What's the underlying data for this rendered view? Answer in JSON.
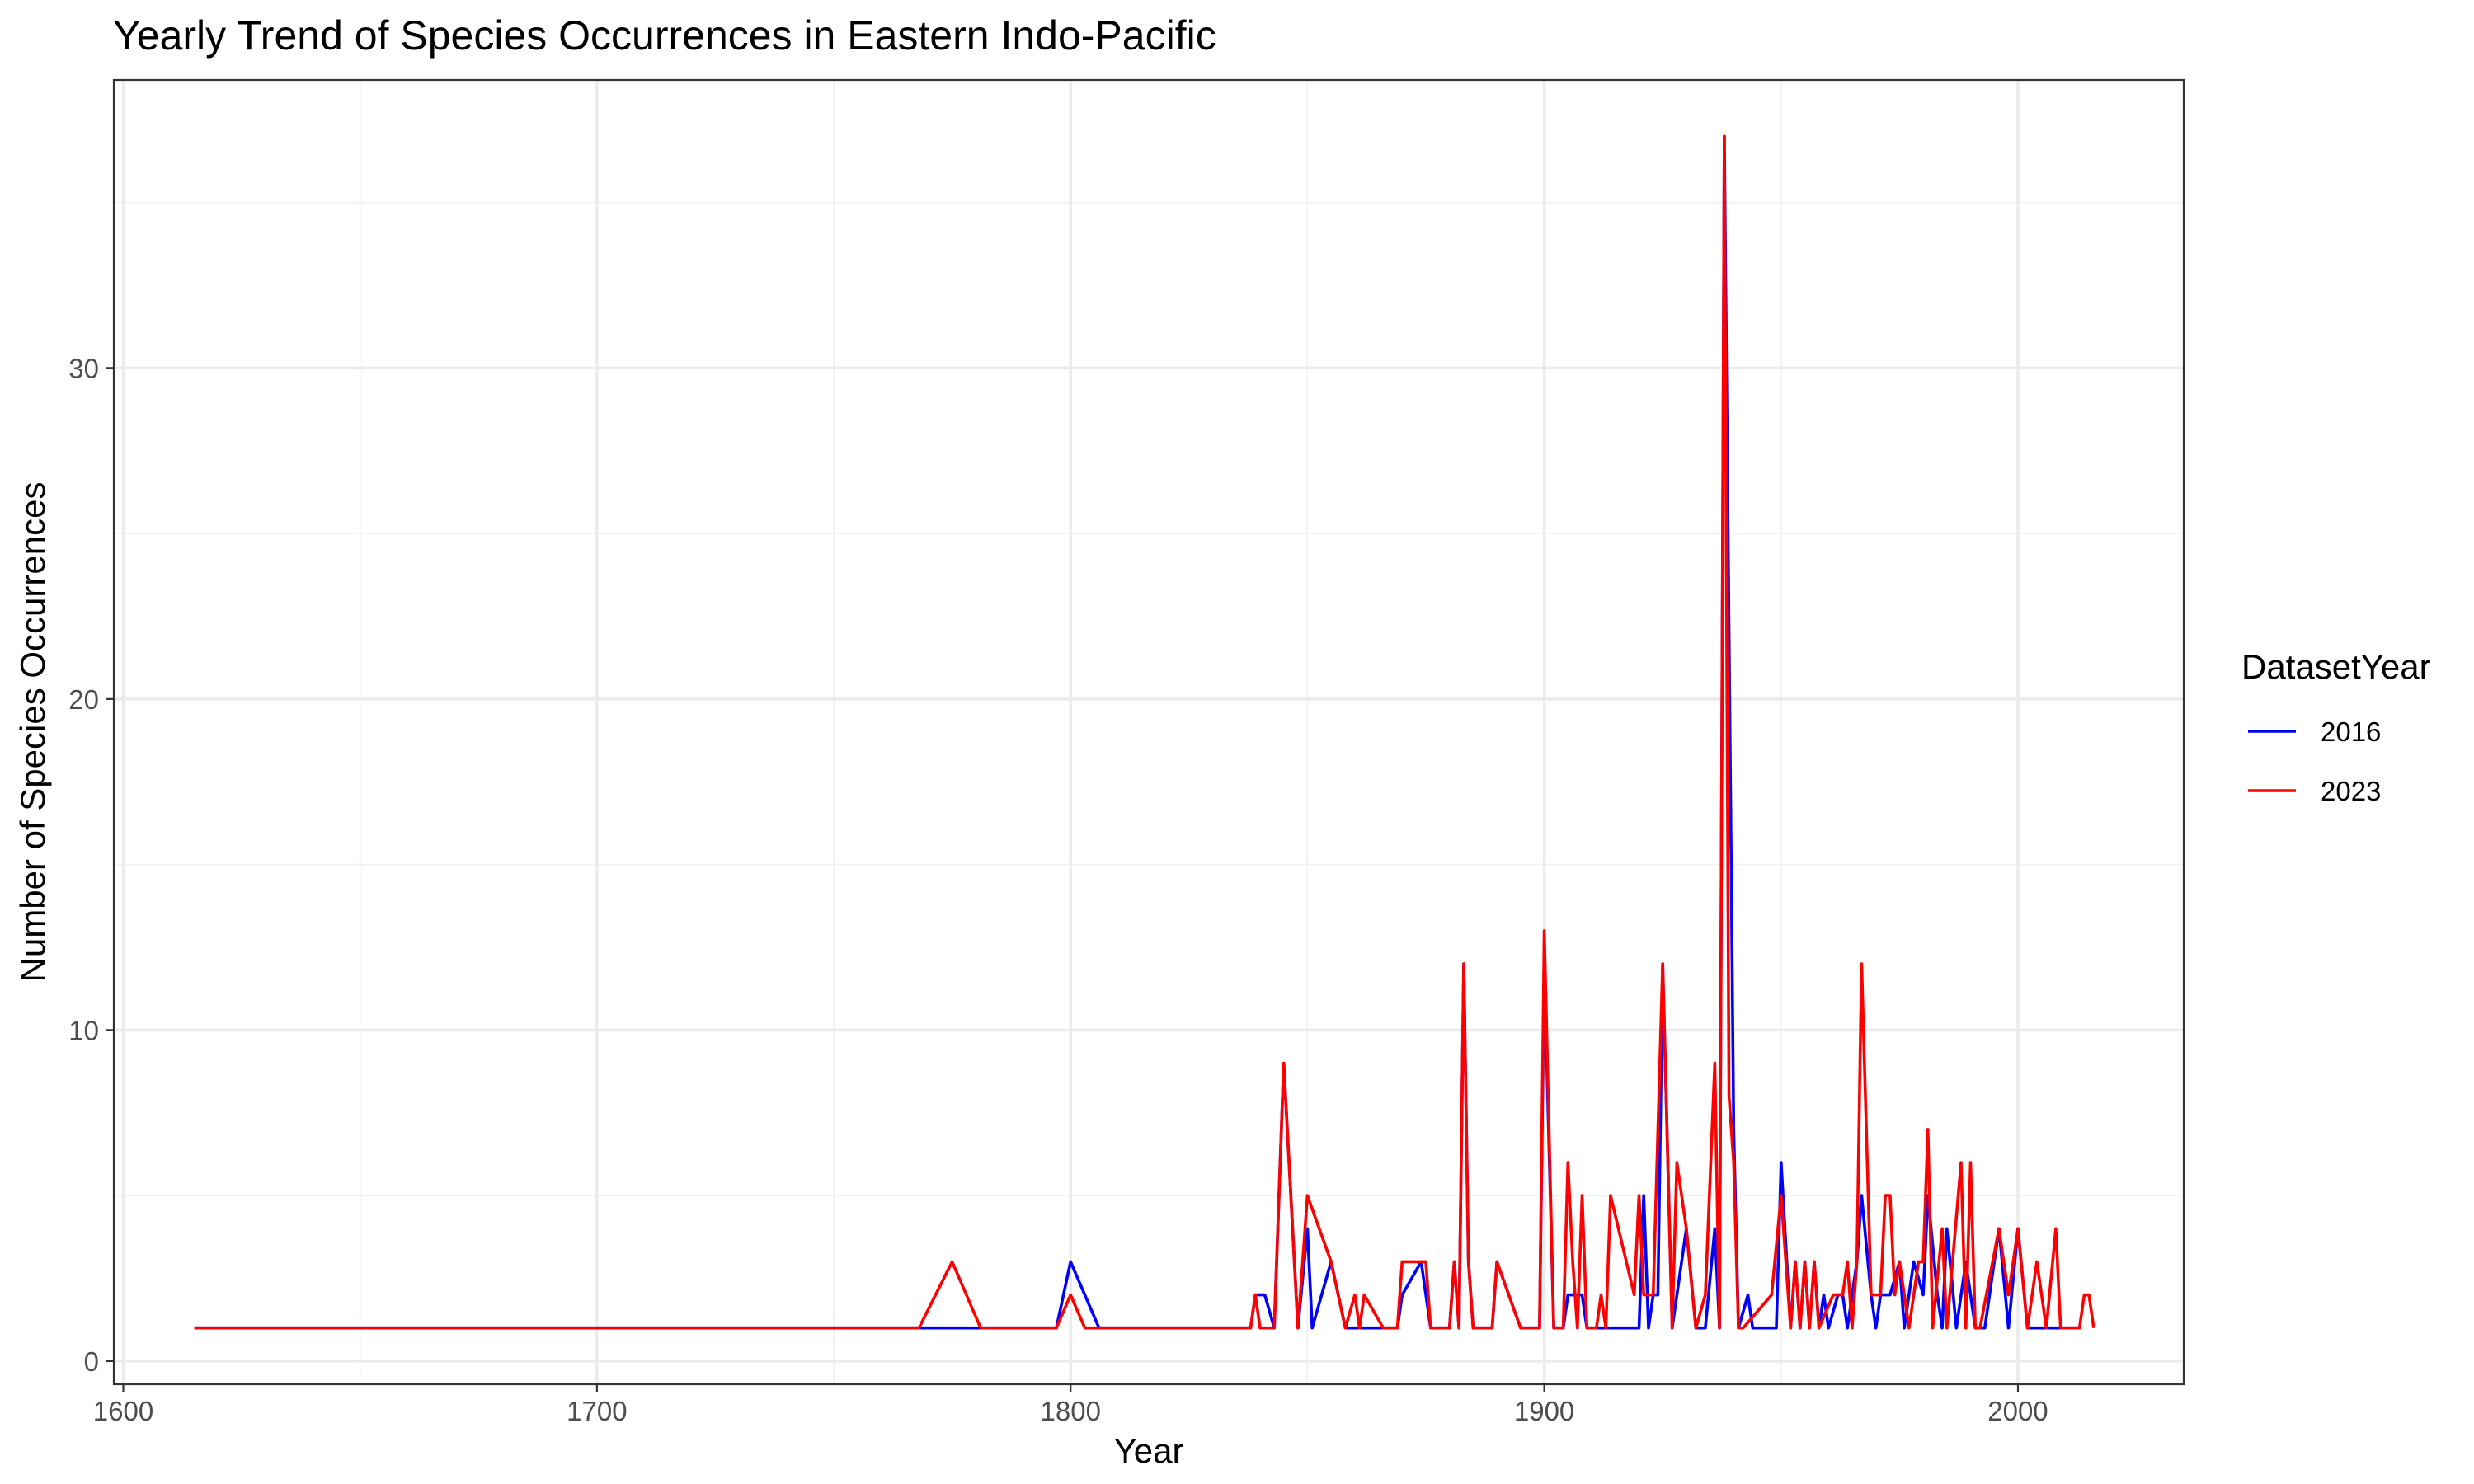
{
  "chart_data": {
    "type": "line",
    "title": "Yearly Trend of Species Occurrences in Eastern Indo-Pacific",
    "xlabel": "Year",
    "ylabel": "Number of Species Occurrences",
    "xlim": [
      1598,
      2035
    ],
    "ylim": [
      -0.7,
      38.7
    ],
    "x_major_ticks": [
      1600,
      1700,
      1800,
      1900,
      2000
    ],
    "x_minor_ticks": [
      1650,
      1750,
      1850,
      1950
    ],
    "x_tick_labels": [
      "1600",
      "1700",
      "1800",
      "1900",
      "2000"
    ],
    "y_major_ticks": [
      0,
      10,
      20,
      30
    ],
    "y_minor_ticks": [
      5,
      15,
      25,
      35
    ],
    "y_tick_labels": [
      "0",
      "10",
      "20",
      "30"
    ],
    "grid": true,
    "legend": {
      "title": "DatasetYear",
      "placement": "right"
    },
    "series": [
      {
        "name": "2016",
        "color": "#0000ff",
        "points": [
          [
            1615,
            1
          ],
          [
            1770,
            1
          ],
          [
            1780,
            1
          ],
          [
            1797,
            1
          ],
          [
            1800,
            3
          ],
          [
            1806,
            1
          ],
          [
            1838,
            1
          ],
          [
            1839,
            2
          ],
          [
            1841,
            2
          ],
          [
            1843,
            1
          ],
          [
            1845,
            9
          ],
          [
            1848,
            1
          ],
          [
            1850,
            4
          ],
          [
            1851,
            1
          ],
          [
            1855,
            3
          ],
          [
            1858,
            1
          ],
          [
            1866,
            1
          ],
          [
            1869,
            1
          ],
          [
            1870,
            2
          ],
          [
            1874,
            3
          ],
          [
            1876,
            1
          ],
          [
            1880,
            1
          ],
          [
            1881,
            3
          ],
          [
            1882,
            1
          ],
          [
            1883,
            12
          ],
          [
            1884,
            3
          ],
          [
            1885,
            1
          ],
          [
            1889,
            1
          ],
          [
            1890,
            3
          ],
          [
            1895,
            1
          ],
          [
            1899,
            1
          ],
          [
            1900,
            12
          ],
          [
            1902,
            1
          ],
          [
            1904,
            1
          ],
          [
            1905,
            2
          ],
          [
            1908,
            2
          ],
          [
            1909,
            1
          ],
          [
            1912,
            1
          ],
          [
            1913,
            1
          ],
          [
            1918,
            1
          ],
          [
            1920,
            1
          ],
          [
            1921,
            5
          ],
          [
            1922,
            1
          ],
          [
            1923,
            2
          ],
          [
            1924,
            2
          ],
          [
            1925,
            12
          ],
          [
            1927,
            1
          ],
          [
            1930,
            4
          ],
          [
            1932,
            1
          ],
          [
            1934,
            1
          ],
          [
            1936,
            4
          ],
          [
            1937,
            1
          ],
          [
            1938,
            37
          ],
          [
            1940,
            7
          ],
          [
            1941,
            1
          ],
          [
            1943,
            2
          ],
          [
            1944,
            1
          ],
          [
            1949,
            1
          ],
          [
            1950,
            6
          ],
          [
            1952,
            1
          ],
          [
            1953,
            3
          ],
          [
            1954,
            1
          ],
          [
            1955,
            3
          ],
          [
            1956,
            1
          ],
          [
            1957,
            3
          ],
          [
            1958,
            1
          ],
          [
            1959,
            2
          ],
          [
            1960,
            1
          ],
          [
            1962,
            2
          ],
          [
            1963,
            2
          ],
          [
            1964,
            1
          ],
          [
            1966,
            3
          ],
          [
            1967,
            5
          ],
          [
            1969,
            2
          ],
          [
            1970,
            1
          ],
          [
            1971,
            2
          ],
          [
            1973,
            2
          ],
          [
            1975,
            3
          ],
          [
            1976,
            1
          ],
          [
            1978,
            3
          ],
          [
            1980,
            2
          ],
          [
            1981,
            5
          ],
          [
            1983,
            2
          ],
          [
            1984,
            1
          ],
          [
            1985,
            4
          ],
          [
            1987,
            1
          ],
          [
            1989,
            3
          ],
          [
            1990,
            2
          ],
          [
            1991,
            1
          ],
          [
            1993,
            1
          ],
          [
            1996,
            4
          ],
          [
            1998,
            1
          ],
          [
            2000,
            4
          ],
          [
            2002,
            1
          ],
          [
            2013,
            1
          ]
        ]
      },
      {
        "name": "2023",
        "color": "#ff0000",
        "points": [
          [
            1615,
            1
          ],
          [
            1768,
            1
          ],
          [
            1775,
            3
          ],
          [
            1781,
            1
          ],
          [
            1797,
            1
          ],
          [
            1800,
            2
          ],
          [
            1803,
            1
          ],
          [
            1838,
            1
          ],
          [
            1839,
            2
          ],
          [
            1840,
            1
          ],
          [
            1843,
            1
          ],
          [
            1845,
            9
          ],
          [
            1848,
            1
          ],
          [
            1850,
            5
          ],
          [
            1855,
            3
          ],
          [
            1858,
            1
          ],
          [
            1860,
            2
          ],
          [
            1861,
            1
          ],
          [
            1862,
            2
          ],
          [
            1866,
            1
          ],
          [
            1869,
            1
          ],
          [
            1870,
            3
          ],
          [
            1875,
            3
          ],
          [
            1876,
            1
          ],
          [
            1880,
            1
          ],
          [
            1881,
            3
          ],
          [
            1882,
            1
          ],
          [
            1883,
            12
          ],
          [
            1884,
            3
          ],
          [
            1885,
            1
          ],
          [
            1889,
            1
          ],
          [
            1890,
            3
          ],
          [
            1895,
            1
          ],
          [
            1899,
            1
          ],
          [
            1900,
            13
          ],
          [
            1902,
            1
          ],
          [
            1904,
            1
          ],
          [
            1905,
            6
          ],
          [
            1906,
            3
          ],
          [
            1907,
            1
          ],
          [
            1908,
            5
          ],
          [
            1909,
            1
          ],
          [
            1911,
            1
          ],
          [
            1912,
            2
          ],
          [
            1913,
            1
          ],
          [
            1914,
            5
          ],
          [
            1919,
            2
          ],
          [
            1920,
            5
          ],
          [
            1921,
            2
          ],
          [
            1923,
            2
          ],
          [
            1925,
            12
          ],
          [
            1927,
            1
          ],
          [
            1928,
            6
          ],
          [
            1930,
            4
          ],
          [
            1932,
            1
          ],
          [
            1934,
            2
          ],
          [
            1936,
            9
          ],
          [
            1937,
            1
          ],
          [
            1938,
            37
          ],
          [
            1939,
            8
          ],
          [
            1940,
            6
          ],
          [
            1941,
            1
          ],
          [
            1942,
            1
          ],
          [
            1948,
            2
          ],
          [
            1950,
            5
          ],
          [
            1952,
            1
          ],
          [
            1953,
            3
          ],
          [
            1954,
            1
          ],
          [
            1955,
            3
          ],
          [
            1956,
            1
          ],
          [
            1957,
            3
          ],
          [
            1958,
            1
          ],
          [
            1961,
            2
          ],
          [
            1963,
            2
          ],
          [
            1964,
            3
          ],
          [
            1965,
            1
          ],
          [
            1966,
            3
          ],
          [
            1967,
            12
          ],
          [
            1969,
            2
          ],
          [
            1971,
            2
          ],
          [
            1972,
            5
          ],
          [
            1973,
            5
          ],
          [
            1974,
            2
          ],
          [
            1975,
            3
          ],
          [
            1977,
            1
          ],
          [
            1979,
            3
          ],
          [
            1980,
            3
          ],
          [
            1981,
            7
          ],
          [
            1982,
            1
          ],
          [
            1984,
            4
          ],
          [
            1985,
            1
          ],
          [
            1988,
            6
          ],
          [
            1989,
            1
          ],
          [
            1990,
            6
          ],
          [
            1991,
            1
          ],
          [
            1992,
            1
          ],
          [
            1996,
            4
          ],
          [
            1998,
            2
          ],
          [
            2000,
            4
          ],
          [
            2002,
            1
          ],
          [
            2004,
            3
          ],
          [
            2006,
            1
          ],
          [
            2008,
            4
          ],
          [
            2009,
            1
          ],
          [
            2013,
            1
          ],
          [
            2014,
            2
          ],
          [
            2015,
            2
          ],
          [
            2016,
            1
          ]
        ]
      }
    ]
  }
}
